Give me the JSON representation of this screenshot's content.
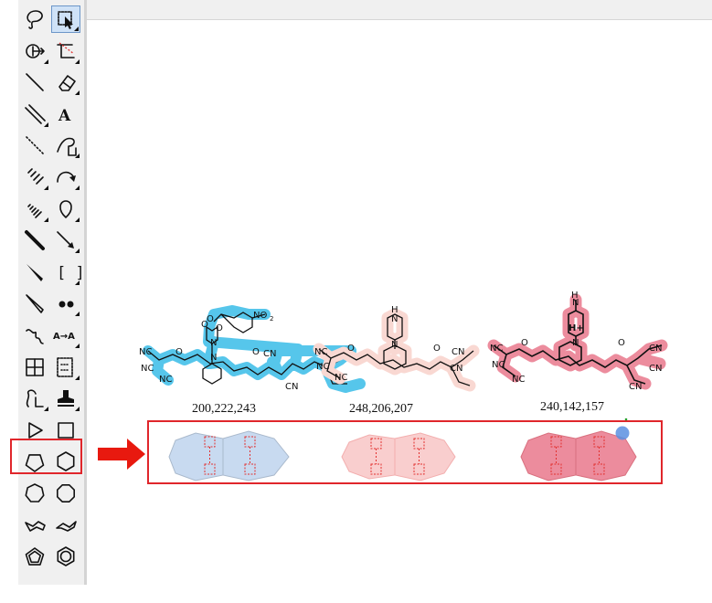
{
  "palette": {
    "tools": [
      {
        "id": "lasso",
        "icon": "lasso-icon"
      },
      {
        "id": "select",
        "icon": "marquee-select-icon",
        "selected": true
      },
      {
        "id": "mass-fragment",
        "icon": "mass-fragment-icon"
      },
      {
        "id": "bond-dashed",
        "icon": "eraser-line-icon"
      },
      {
        "id": "line",
        "icon": "line-icon"
      },
      {
        "id": "eraser",
        "icon": "eraser-icon"
      },
      {
        "id": "double-bond",
        "icon": "double-bond-icon"
      },
      {
        "id": "text",
        "icon": "text-icon",
        "label": "A"
      },
      {
        "id": "dotted-bond",
        "icon": "dotted-bond-icon"
      },
      {
        "id": "pen",
        "icon": "pen-icon"
      },
      {
        "id": "hash-bond",
        "icon": "hash-bond-icon"
      },
      {
        "id": "arc-arrow",
        "icon": "arc-arrow-icon"
      },
      {
        "id": "hashed-wedge",
        "icon": "hashed-wedge-icon"
      },
      {
        "id": "orbital",
        "icon": "orbital-icon"
      },
      {
        "id": "bold-bond",
        "icon": "bold-bond-icon"
      },
      {
        "id": "arrow",
        "icon": "arrow-icon"
      },
      {
        "id": "wedge",
        "icon": "wedge-icon"
      },
      {
        "id": "brackets",
        "icon": "brackets-icon",
        "label": "[ ]"
      },
      {
        "id": "hollow-wedge",
        "icon": "hollow-wedge-icon"
      },
      {
        "id": "electrons",
        "icon": "electron-pair-icon"
      },
      {
        "id": "wavy-bond",
        "icon": "wavy-bond-icon"
      },
      {
        "id": "atom-map",
        "icon": "atom-map-icon",
        "label": "A→A"
      },
      {
        "id": "table",
        "icon": "table-icon"
      },
      {
        "id": "tlc-plate",
        "icon": "tlc-plate-icon"
      },
      {
        "id": "query",
        "icon": "query-icon"
      },
      {
        "id": "stamp",
        "icon": "stamp-icon"
      },
      {
        "id": "play",
        "icon": "play-icon"
      },
      {
        "id": "rectangle",
        "icon": "rectangle-icon"
      },
      {
        "id": "pentagon",
        "icon": "pentagon-icon"
      },
      {
        "id": "hexagon",
        "icon": "hexagon-icon"
      },
      {
        "id": "heptagon",
        "icon": "heptagon-icon"
      },
      {
        "id": "octagon",
        "icon": "octagon-icon"
      },
      {
        "id": "chair-1",
        "icon": "chair-conformation-icon"
      },
      {
        "id": "chair-2",
        "icon": "chair-conformation-2-icon"
      },
      {
        "id": "cyclopentadiene",
        "icon": "cyclopentadiene-icon"
      },
      {
        "id": "benzene",
        "icon": "benzene-icon"
      }
    ]
  },
  "molecules": [
    {
      "id": "mol-1",
      "caption": "200,222,243",
      "color": "#4ec4ea",
      "atoms": [
        "NC",
        "NC",
        "NC",
        "CN",
        "CN",
        "NO2",
        "O",
        "O",
        "O",
        "N",
        "N",
        "N",
        "O",
        "O"
      ]
    },
    {
      "id": "mol-2",
      "caption": "248,206,207",
      "color": "#f9d8d2",
      "atoms": [
        "NC",
        "NC",
        "NC",
        "CN",
        "CN",
        "CN",
        "O",
        "O",
        "N",
        "N",
        "H"
      ]
    },
    {
      "id": "mol-3",
      "caption": "240,142,157",
      "color": "#ec8c9d",
      "atoms": [
        "NC",
        "NC",
        "NC",
        "CN",
        "CN",
        "CN",
        "O",
        "O",
        "N",
        "N",
        "H",
        "H+"
      ]
    }
  ],
  "shapes": [
    {
      "id": "shape-blue",
      "fill": "#c8daf0",
      "stroke": "#a9b9cc"
    },
    {
      "id": "shape-pink",
      "fill": "#f9cece",
      "stroke": "#f3aeae"
    },
    {
      "id": "shape-rose",
      "fill": "#ec8c9d",
      "stroke": "#d9707f"
    }
  ],
  "colors": {
    "highlight": "#e0262b",
    "arrow": "#e8190f",
    "selection_handle": "#e2302f",
    "rotate_handle": "#5b8fe0",
    "palette_bg": "#f0f0f0"
  }
}
